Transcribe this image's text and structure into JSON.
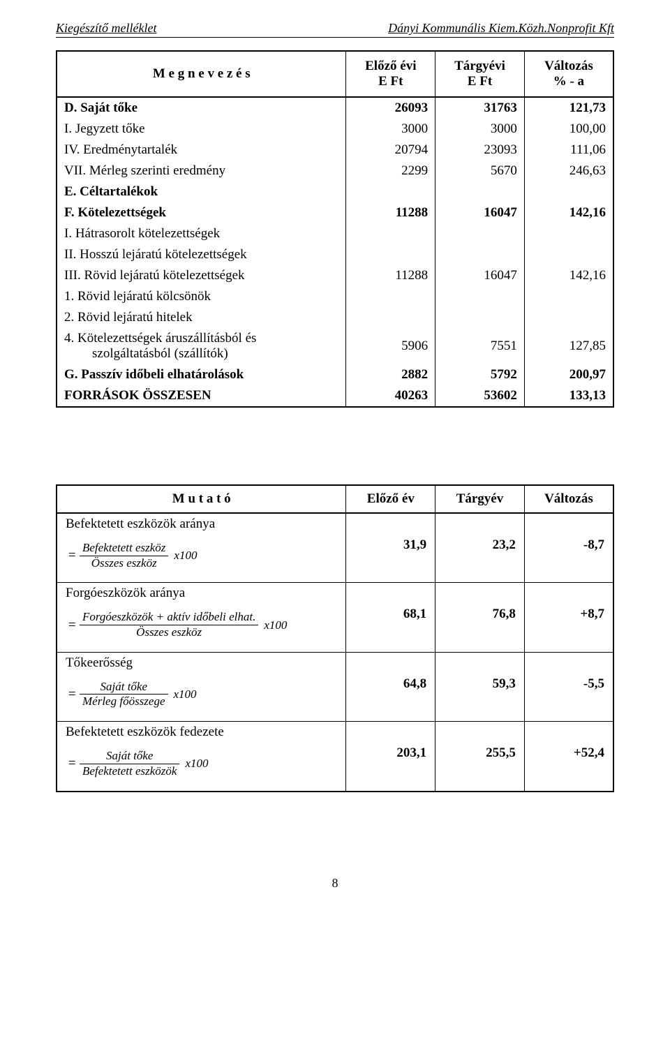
{
  "header": {
    "left": "Kiegészítő melléklet",
    "right": "Dányi Kommunális Kiem.Közh.Nonprofit Kft"
  },
  "table1": {
    "cols": [
      "M e g n e v e z é s",
      "Előző évi\nE Ft",
      "Tárgyévi\nE Ft",
      "Változás\n% - a"
    ],
    "rows": [
      {
        "name": "D. Saját tőke",
        "c1": "26093",
        "c2": "31763",
        "c3": "121,73",
        "bold": true
      },
      {
        "name": "I. Jegyzett tőke",
        "c1": "3000",
        "c2": "3000",
        "c3": "100,00",
        "bold": false
      },
      {
        "name": "IV. Eredménytartalék",
        "c1": "20794",
        "c2": "23093",
        "c3": "111,06",
        "bold": false
      },
      {
        "name": "VII. Mérleg szerinti eredmény",
        "c1": "2299",
        "c2": "5670",
        "c3": "246,63",
        "bold": false
      },
      {
        "name": "E. Céltartalékok",
        "c1": "",
        "c2": "",
        "c3": "",
        "bold": true
      },
      {
        "name": "F. Kötelezettségek",
        "c1": "11288",
        "c2": "16047",
        "c3": "142,16",
        "bold": true
      },
      {
        "name": "I. Hátrasorolt kötelezettségek",
        "c1": "",
        "c2": "",
        "c3": "",
        "bold": false
      },
      {
        "name": "II. Hosszú lejáratú kötelezettségek",
        "c1": "",
        "c2": "",
        "c3": "",
        "bold": false
      },
      {
        "name": "III. Rövid lejáratú kötelezettségek",
        "c1": "11288",
        "c2": "16047",
        "c3": "142,16",
        "bold": false
      },
      {
        "name": "1. Rövid lejáratú kölcsönök",
        "c1": "",
        "c2": "",
        "c3": "",
        "bold": false
      },
      {
        "name": "2. Rövid lejáratú hitelek",
        "c1": "",
        "c2": "",
        "c3": "",
        "bold": false
      },
      {
        "name": "4. Kötelezettségek áruszállításból és szolgáltatásból (szállítók)",
        "c1": "5906",
        "c2": "7551",
        "c3": "127,85",
        "bold": false,
        "indent": true
      },
      {
        "name": "G. Passzív időbeli elhatárolások",
        "c1": "2882",
        "c2": "5792",
        "c3": "200,97",
        "bold": true
      },
      {
        "name": "FORRÁSOK ÖSSZESEN",
        "c1": "40263",
        "c2": "53602",
        "c3": "133,13",
        "bold": true
      }
    ]
  },
  "table2": {
    "cols": [
      "M u t a t ó",
      "Előző év",
      "Tárgyév",
      "Változás"
    ],
    "metrics": [
      {
        "title": "Befektetett eszközök aránya",
        "num": "Befektetett eszköz",
        "den": "Összes eszköz",
        "mult": "x100",
        "c1": "31,9",
        "c2": "23,2",
        "c3": "-8,7"
      },
      {
        "title": "Forgóeszközök aránya",
        "num": "Forgóeszközök  +  aktív időbeli elhat.",
        "den": "Összes eszköz",
        "mult": "x100",
        "c1": "68,1",
        "c2": "76,8",
        "c3": "+8,7"
      },
      {
        "title": "Tőkeerősség",
        "num": "Saját tőke",
        "den": "Mérleg főösszege",
        "mult": "x100",
        "c1": "64,8",
        "c2": "59,3",
        "c3": "-5,5"
      },
      {
        "title": "Befektetett eszközök fedezete",
        "num": "Saját tőke",
        "den": "Befektetett eszközök",
        "mult": "x100",
        "c1": "203,1",
        "c2": "255,5",
        "c3": "+52,4"
      }
    ]
  },
  "page_number": "8"
}
